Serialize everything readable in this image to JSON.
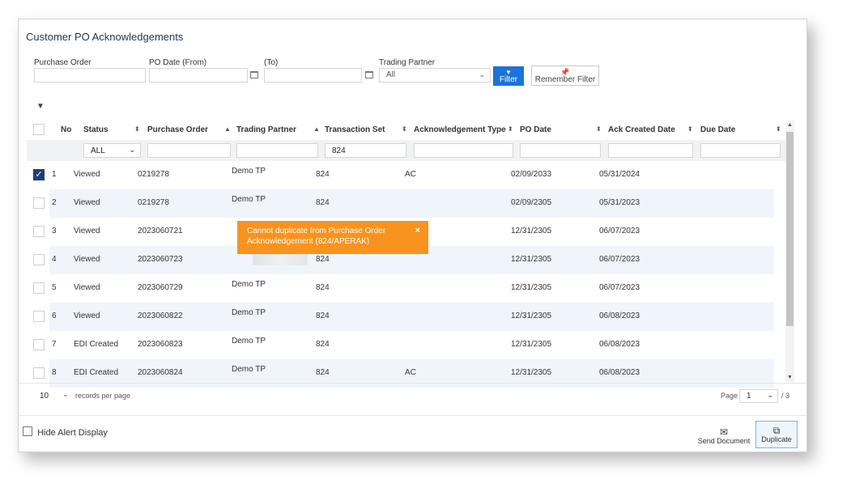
{
  "page": {
    "title": "Customer PO Acknowledgements"
  },
  "filters": {
    "purchase_order_label": "Purchase Order",
    "purchase_order_value": "",
    "po_date_from_label": "PO Date (From)",
    "po_date_to_label": "(To)",
    "trading_partner_label": "Trading Partner",
    "trading_partner_value": "All",
    "filter_button": "Filter",
    "remember_filter_button": "Remember Filter"
  },
  "table": {
    "columns": [
      "No",
      "Status",
      "Purchase Order",
      "Trading Partner",
      "Transaction Set",
      "Acknowledgement Type",
      "PO Date",
      "Ack Created Date",
      "Due Date"
    ],
    "column_filters": {
      "status": "ALL",
      "transaction_set": "824"
    },
    "rows": [
      {
        "no": "1",
        "status": "Viewed",
        "purchase_order": "0219278",
        "trading_partner": "Demo TP",
        "transaction_set": "824",
        "ack_type": "AC",
        "po_date": "02/09/2033",
        "ack_created": "05/31/2024",
        "due_date": "",
        "checked": true
      },
      {
        "no": "2",
        "status": "Viewed",
        "purchase_order": "0219278",
        "trading_partner": "Demo TP",
        "transaction_set": "824",
        "ack_type": "",
        "po_date": "02/09/2305",
        "ack_created": "05/31/2023",
        "due_date": "",
        "checked": false
      },
      {
        "no": "3",
        "status": "Viewed",
        "purchase_order": "2023060721",
        "trading_partner": "",
        "transaction_set": "",
        "ack_type": "",
        "po_date": "12/31/2305",
        "ack_created": "06/07/2023",
        "due_date": "",
        "checked": false
      },
      {
        "no": "4",
        "status": "Viewed",
        "purchase_order": "2023060723",
        "trading_partner": "",
        "transaction_set": "824",
        "ack_type": "",
        "po_date": "12/31/2305",
        "ack_created": "06/07/2023",
        "due_date": "",
        "checked": false
      },
      {
        "no": "5",
        "status": "Viewed",
        "purchase_order": "2023060729",
        "trading_partner": "Demo TP",
        "transaction_set": "824",
        "ack_type": "",
        "po_date": "12/31/2305",
        "ack_created": "06/07/2023",
        "due_date": "",
        "checked": false
      },
      {
        "no": "6",
        "status": "Viewed",
        "purchase_order": "2023060822",
        "trading_partner": "Demo TP",
        "transaction_set": "824",
        "ack_type": "",
        "po_date": "12/31/2305",
        "ack_created": "06/08/2023",
        "due_date": "",
        "checked": false
      },
      {
        "no": "7",
        "status": "EDI Created",
        "purchase_order": "2023060823",
        "trading_partner": "Demo TP",
        "transaction_set": "824",
        "ack_type": "",
        "po_date": "12/31/2305",
        "ack_created": "06/08/2023",
        "due_date": "",
        "checked": false
      },
      {
        "no": "8",
        "status": "EDI Created",
        "purchase_order": "2023060824",
        "trading_partner": "Demo TP",
        "transaction_set": "824",
        "ack_type": "AC",
        "po_date": "12/31/2305",
        "ack_created": "06/08/2023",
        "due_date": "",
        "checked": false
      }
    ]
  },
  "toast": {
    "message": "Cannot duplicate from Purchase Order Acknowledgement (824/APERAK)",
    "close": "×"
  },
  "pagination": {
    "page_size": "10",
    "records_per_page_label": "records per page",
    "page_label": "Page",
    "page_value": "1",
    "total": "/ 3"
  },
  "footer": {
    "hide_alert_label": "Hide Alert Display",
    "send_document": "Send Document",
    "duplicate": "Duplicate"
  },
  "colors": {
    "primary": "#1a73d9",
    "toast": "#f7931e",
    "row_alt": "#f0f5fc",
    "title": "#1f3553"
  }
}
